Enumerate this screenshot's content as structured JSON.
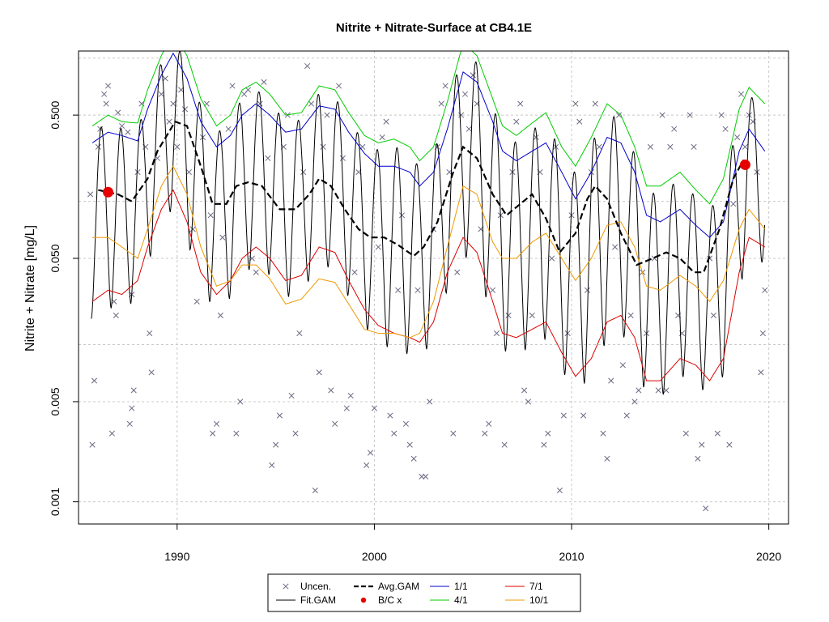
{
  "chart_data": {
    "type": "line",
    "title": "Nitrite + Nitrate-Surface at CB4.1E",
    "ylabel": "Nitrite + Nitrate [mg/L]",
    "xlabel": "",
    "y_scale": "log",
    "xlim": [
      1985.0,
      2021.0
    ],
    "ylim": [
      0.0007,
      1.4
    ],
    "x_ticks": [
      1990,
      2000,
      2010,
      2020
    ],
    "x_tick_labels": [
      "1990",
      "2000",
      "2010",
      "2020"
    ],
    "y_ticks": [
      0.001,
      0.005,
      0.05,
      0.5
    ],
    "y_tick_labels": [
      "0.001",
      "0.005",
      "0.050",
      "0.500"
    ],
    "grid": true,
    "legend_position": "bottom",
    "legend": [
      {
        "label": "Uncen.",
        "symbol": "x",
        "color": "#6B6B84"
      },
      {
        "label": "Fit.GAM",
        "symbol": "line",
        "color": "#000000"
      },
      {
        "label": "Avg.GAM",
        "symbol": "dashed",
        "color": "#000000"
      },
      {
        "label": "B/C x",
        "symbol": "dot",
        "color": "#e60000"
      },
      {
        "label": "1/1",
        "symbol": "line",
        "color": "#0000cc"
      },
      {
        "label": "4/1",
        "symbol": "line",
        "color": "#00cc00"
      },
      {
        "label": "7/1",
        "symbol": "line",
        "color": "#dd0000"
      },
      {
        "label": "10/1",
        "symbol": "line",
        "color": "#ee9900"
      }
    ],
    "series": [
      {
        "name": "Avg.GAM",
        "color": "#000000",
        "dashed": true,
        "x": [
          1986.0,
          1987.0,
          1987.7,
          1988.5,
          1989.0,
          1989.9,
          1990.5,
          1991.2,
          1991.8,
          1992.5,
          1993.0,
          1993.6,
          1994.3,
          1995.2,
          1996.0,
          1996.7,
          1997.2,
          1997.8,
          1998.5,
          1999.2,
          1999.8,
          2000.5,
          2001.2,
          2002.0,
          2002.5,
          2003.2,
          2004.0,
          2004.5,
          2005.2,
          2006.0,
          2006.7,
          2007.4,
          2008.0,
          2008.7,
          2009.4,
          2010.2,
          2010.8,
          2011.2,
          2011.8,
          2012.5,
          2013.3,
          2013.8,
          2014.8,
          2015.5,
          2016.2,
          2016.7,
          2017.5,
          2018.2,
          2018.7,
          2019.0
        ],
        "y": [
          0.15,
          0.14,
          0.125,
          0.18,
          0.28,
          0.45,
          0.42,
          0.22,
          0.12,
          0.12,
          0.16,
          0.17,
          0.16,
          0.11,
          0.11,
          0.14,
          0.18,
          0.16,
          0.11,
          0.08,
          0.07,
          0.07,
          0.062,
          0.052,
          0.06,
          0.09,
          0.2,
          0.3,
          0.25,
          0.14,
          0.1,
          0.12,
          0.14,
          0.095,
          0.055,
          0.075,
          0.13,
          0.16,
          0.13,
          0.075,
          0.045,
          0.048,
          0.055,
          0.05,
          0.04,
          0.04,
          0.08,
          0.18,
          0.24,
          0.22
        ]
      },
      {
        "name": "1/1",
        "color": "#0000cc",
        "x": [
          1985.7,
          1986.5,
          1987.2,
          1988.0,
          1988.5,
          1989.2,
          1989.8,
          1990.5,
          1991.2,
          1992.0,
          1992.7,
          1993.3,
          1994.0,
          1994.7,
          1995.5,
          1996.3,
          1997.2,
          1998.0,
          1998.7,
          1999.5,
          2000.2,
          2001.0,
          2001.8,
          2002.3,
          2003.0,
          2003.7,
          2004.5,
          2005.2,
          2006.0,
          2006.5,
          2007.2,
          2008.0,
          2008.7,
          2009.5,
          2010.2,
          2011.0,
          2011.8,
          2012.5,
          2013.2,
          2013.8,
          2014.5,
          2015.5,
          2016.3,
          2017.0,
          2017.7,
          2018.5,
          2019.0,
          2019.8
        ],
        "y": [
          0.32,
          0.38,
          0.36,
          0.33,
          0.55,
          0.95,
          1.35,
          0.9,
          0.45,
          0.3,
          0.36,
          0.5,
          0.6,
          0.5,
          0.38,
          0.4,
          0.58,
          0.55,
          0.38,
          0.27,
          0.22,
          0.22,
          0.2,
          0.16,
          0.2,
          0.4,
          1.0,
          0.85,
          0.45,
          0.28,
          0.24,
          0.28,
          0.32,
          0.2,
          0.13,
          0.2,
          0.35,
          0.32,
          0.2,
          0.1,
          0.09,
          0.11,
          0.085,
          0.07,
          0.09,
          0.28,
          0.4,
          0.28
        ]
      },
      {
        "name": "4/1",
        "color": "#00cc00",
        "x": [
          1985.7,
          1986.5,
          1987.2,
          1988.0,
          1988.5,
          1989.2,
          1989.8,
          1990.5,
          1991.2,
          1992.0,
          1992.7,
          1993.3,
          1994.0,
          1994.7,
          1995.5,
          1996.3,
          1997.2,
          1998.0,
          1998.7,
          1999.5,
          2000.2,
          2001.0,
          2001.8,
          2002.3,
          2003.0,
          2003.7,
          2004.5,
          2005.2,
          2006.0,
          2006.5,
          2007.2,
          2008.0,
          2008.7,
          2009.5,
          2010.2,
          2011.0,
          2011.8,
          2012.5,
          2013.2,
          2013.8,
          2014.5,
          2015.5,
          2016.3,
          2017.0,
          2017.7,
          2018.5,
          2019.0,
          2019.8
        ],
        "y": [
          0.42,
          0.5,
          0.45,
          0.44,
          0.75,
          1.3,
          1.9,
          1.3,
          0.65,
          0.42,
          0.5,
          0.75,
          0.85,
          0.7,
          0.5,
          0.52,
          0.8,
          0.75,
          0.52,
          0.36,
          0.32,
          0.34,
          0.3,
          0.24,
          0.3,
          0.62,
          1.6,
          1.3,
          0.65,
          0.42,
          0.36,
          0.44,
          0.52,
          0.3,
          0.22,
          0.35,
          0.6,
          0.5,
          0.3,
          0.16,
          0.16,
          0.2,
          0.15,
          0.12,
          0.18,
          0.55,
          0.78,
          0.6
        ]
      },
      {
        "name": "7/1",
        "color": "#dd0000",
        "x": [
          1985.7,
          1986.5,
          1987.2,
          1988.0,
          1988.5,
          1989.2,
          1989.8,
          1990.5,
          1991.2,
          1992.0,
          1992.7,
          1993.3,
          1994.0,
          1994.7,
          1995.5,
          1996.3,
          1997.2,
          1998.0,
          1998.7,
          1999.5,
          2000.2,
          2001.0,
          2001.8,
          2002.3,
          2003.0,
          2003.7,
          2004.5,
          2005.2,
          2006.0,
          2006.5,
          2007.2,
          2008.0,
          2008.7,
          2009.5,
          2010.2,
          2011.0,
          2011.8,
          2012.5,
          2013.2,
          2013.8,
          2014.5,
          2015.5,
          2016.3,
          2017.0,
          2017.7,
          2018.5,
          2019.0,
          2019.8
        ],
        "y": [
          0.025,
          0.03,
          0.028,
          0.035,
          0.06,
          0.11,
          0.15,
          0.09,
          0.04,
          0.028,
          0.035,
          0.05,
          0.06,
          0.05,
          0.035,
          0.038,
          0.06,
          0.055,
          0.035,
          0.022,
          0.017,
          0.015,
          0.014,
          0.013,
          0.018,
          0.04,
          0.07,
          0.055,
          0.025,
          0.015,
          0.014,
          0.016,
          0.018,
          0.011,
          0.0075,
          0.01,
          0.018,
          0.02,
          0.014,
          0.007,
          0.007,
          0.01,
          0.009,
          0.007,
          0.01,
          0.04,
          0.07,
          0.06
        ]
      },
      {
        "name": "10/1",
        "color": "#ee9900",
        "x": [
          1985.7,
          1986.5,
          1987.2,
          1988.0,
          1988.5,
          1989.2,
          1989.8,
          1990.5,
          1991.2,
          1992.0,
          1992.7,
          1993.3,
          1994.0,
          1994.7,
          1995.5,
          1996.3,
          1997.2,
          1998.0,
          1998.7,
          1999.5,
          2000.2,
          2001.0,
          2001.8,
          2002.3,
          2003.0,
          2003.7,
          2004.5,
          2005.2,
          2006.0,
          2006.5,
          2007.2,
          2008.0,
          2008.7,
          2009.5,
          2010.2,
          2011.0,
          2011.8,
          2012.5,
          2013.2,
          2013.8,
          2014.5,
          2015.5,
          2016.3,
          2017.0,
          2017.7,
          2018.5,
          2019.0,
          2019.8
        ],
        "y": [
          0.07,
          0.07,
          0.06,
          0.05,
          0.08,
          0.16,
          0.22,
          0.14,
          0.06,
          0.032,
          0.035,
          0.045,
          0.045,
          0.036,
          0.024,
          0.026,
          0.036,
          0.034,
          0.024,
          0.016,
          0.015,
          0.015,
          0.014,
          0.015,
          0.025,
          0.06,
          0.16,
          0.14,
          0.065,
          0.05,
          0.05,
          0.065,
          0.075,
          0.05,
          0.035,
          0.05,
          0.085,
          0.09,
          0.06,
          0.032,
          0.03,
          0.038,
          0.032,
          0.025,
          0.035,
          0.08,
          0.11,
          0.08
        ]
      }
    ],
    "fit_gam_note": "Fit.GAM oscillates annually between the 4/1 (winter high) and 7/1 (summer low) curves",
    "bc_points": [
      {
        "x": 1986.5,
        "y": 0.145
      },
      {
        "x": 2018.8,
        "y": 0.225
      }
    ],
    "uncen_points": [
      [
        1985.6,
        0.14
      ],
      [
        1985.7,
        0.0025
      ],
      [
        1985.8,
        0.007
      ],
      [
        1986.0,
        0.3
      ],
      [
        1986.1,
        0.4
      ],
      [
        1986.3,
        0.7
      ],
      [
        1986.4,
        0.6
      ],
      [
        1986.5,
        0.8
      ],
      [
        1986.7,
        0.003
      ],
      [
        1986.8,
        0.025
      ],
      [
        1986.9,
        0.02
      ],
      [
        1987.0,
        0.52
      ],
      [
        1987.2,
        0.42
      ],
      [
        1987.5,
        0.38
      ],
      [
        1987.6,
        0.0035
      ],
      [
        1987.7,
        0.0045
      ],
      [
        1987.7,
        0.028
      ],
      [
        1987.8,
        0.006
      ],
      [
        1988.0,
        0.2
      ],
      [
        1988.2,
        0.6
      ],
      [
        1988.4,
        0.3
      ],
      [
        1988.6,
        0.015
      ],
      [
        1988.7,
        0.008
      ],
      [
        1989.0,
        0.25
      ],
      [
        1989.2,
        0.7
      ],
      [
        1989.4,
        0.9
      ],
      [
        1989.6,
        0.45
      ],
      [
        1989.8,
        0.6
      ],
      [
        1990.0,
        0.3
      ],
      [
        1990.2,
        0.75
      ],
      [
        1990.4,
        0.55
      ],
      [
        1990.6,
        0.2
      ],
      [
        1990.8,
        0.08
      ],
      [
        1991.0,
        0.025
      ],
      [
        1991.3,
        0.35
      ],
      [
        1991.5,
        0.6
      ],
      [
        1991.7,
        0.1
      ],
      [
        1991.8,
        0.003
      ],
      [
        1992.0,
        0.0035
      ],
      [
        1992.2,
        0.02
      ],
      [
        1992.3,
        0.07
      ],
      [
        1992.6,
        0.4
      ],
      [
        1992.8,
        0.8
      ],
      [
        1993.0,
        0.003
      ],
      [
        1993.2,
        0.005
      ],
      [
        1993.4,
        0.7
      ],
      [
        1993.6,
        0.75
      ],
      [
        1993.8,
        0.05
      ],
      [
        1994.0,
        0.04
      ],
      [
        1994.2,
        0.6
      ],
      [
        1994.4,
        0.85
      ],
      [
        1994.6,
        0.25
      ],
      [
        1994.8,
        0.0018
      ],
      [
        1995.0,
        0.0025
      ],
      [
        1995.2,
        0.004
      ],
      [
        1995.4,
        0.3
      ],
      [
        1995.6,
        0.5
      ],
      [
        1995.8,
        0.0055
      ],
      [
        1996.0,
        0.003
      ],
      [
        1996.2,
        0.015
      ],
      [
        1996.4,
        0.2
      ],
      [
        1996.6,
        1.1
      ],
      [
        1996.8,
        0.6
      ],
      [
        1997.0,
        0.0012
      ],
      [
        1997.2,
        0.008
      ],
      [
        1997.4,
        0.3
      ],
      [
        1997.6,
        0.5
      ],
      [
        1997.8,
        0.006
      ],
      [
        1998.0,
        0.0035
      ],
      [
        1998.2,
        0.8
      ],
      [
        1998.4,
        0.25
      ],
      [
        1998.6,
        0.0045
      ],
      [
        1998.8,
        0.0055
      ],
      [
        1999.0,
        0.04
      ],
      [
        1999.2,
        0.2
      ],
      [
        1999.4,
        0.3
      ],
      [
        1999.6,
        0.0018
      ],
      [
        1999.8,
        0.0022
      ],
      [
        2000.0,
        0.0045
      ],
      [
        2000.2,
        0.06
      ],
      [
        2000.4,
        0.35
      ],
      [
        2000.6,
        0.45
      ],
      [
        2000.8,
        0.004
      ],
      [
        2001.0,
        0.003
      ],
      [
        2001.2,
        0.03
      ],
      [
        2001.4,
        0.1
      ],
      [
        2001.6,
        0.0035
      ],
      [
        2001.8,
        0.0025
      ],
      [
        2002.0,
        0.002
      ],
      [
        2002.2,
        0.03
      ],
      [
        2002.4,
        0.0015
      ],
      [
        2002.6,
        0.0015
      ],
      [
        2002.8,
        0.005
      ],
      [
        2003.0,
        0.08
      ],
      [
        2003.2,
        0.3
      ],
      [
        2003.4,
        0.6
      ],
      [
        2003.6,
        0.8
      ],
      [
        2003.8,
        0.2
      ],
      [
        2004.0,
        0.003
      ],
      [
        2004.2,
        0.04
      ],
      [
        2004.4,
        0.5
      ],
      [
        2004.6,
        0.7
      ],
      [
        2004.8,
        0.4
      ],
      [
        2005.0,
        0.95
      ],
      [
        2005.2,
        0.6
      ],
      [
        2005.4,
        0.08
      ],
      [
        2005.6,
        0.003
      ],
      [
        2005.8,
        0.0035
      ],
      [
        2006.0,
        0.03
      ],
      [
        2006.2,
        0.015
      ],
      [
        2006.4,
        0.1
      ],
      [
        2006.6,
        0.0025
      ],
      [
        2006.8,
        0.02
      ],
      [
        2007.0,
        0.2
      ],
      [
        2007.2,
        0.45
      ],
      [
        2007.4,
        0.6
      ],
      [
        2007.6,
        0.006
      ],
      [
        2007.8,
        0.005
      ],
      [
        2008.0,
        0.02
      ],
      [
        2008.2,
        0.35
      ],
      [
        2008.4,
        0.2
      ],
      [
        2008.6,
        0.0025
      ],
      [
        2008.8,
        0.003
      ],
      [
        2009.0,
        0.05
      ],
      [
        2009.2,
        0.3
      ],
      [
        2009.4,
        0.0012
      ],
      [
        2009.6,
        0.004
      ],
      [
        2009.8,
        0.015
      ],
      [
        2010.0,
        0.1
      ],
      [
        2010.2,
        0.6
      ],
      [
        2010.4,
        0.45
      ],
      [
        2010.6,
        0.004
      ],
      [
        2010.8,
        0.03
      ],
      [
        2011.0,
        0.2
      ],
      [
        2011.2,
        0.6
      ],
      [
        2011.4,
        0.3
      ],
      [
        2011.6,
        0.003
      ],
      [
        2011.8,
        0.002
      ],
      [
        2012.0,
        0.007
      ],
      [
        2012.2,
        0.06
      ],
      [
        2012.4,
        0.5
      ],
      [
        2012.6,
        0.009
      ],
      [
        2012.8,
        0.004
      ],
      [
        2013.0,
        0.02
      ],
      [
        2013.2,
        0.005
      ],
      [
        2013.4,
        0.006
      ],
      [
        2013.6,
        0.04
      ],
      [
        2013.8,
        0.015
      ],
      [
        2014.0,
        0.3
      ],
      [
        2014.2,
        0.05
      ],
      [
        2014.4,
        0.006
      ],
      [
        2014.6,
        0.5
      ],
      [
        2014.8,
        0.006
      ],
      [
        2015.0,
        0.3
      ],
      [
        2015.2,
        0.4
      ],
      [
        2015.4,
        0.02
      ],
      [
        2015.6,
        0.015
      ],
      [
        2015.8,
        0.003
      ],
      [
        2016.0,
        0.5
      ],
      [
        2016.2,
        0.3
      ],
      [
        2016.4,
        0.002
      ],
      [
        2016.6,
        0.0025
      ],
      [
        2016.8,
        0.0009
      ],
      [
        2017.0,
        0.05
      ],
      [
        2017.2,
        0.02
      ],
      [
        2017.4,
        0.003
      ],
      [
        2017.6,
        0.5
      ],
      [
        2017.8,
        0.4
      ],
      [
        2018.0,
        0.0025
      ],
      [
        2018.2,
        0.12
      ],
      [
        2018.4,
        0.35
      ],
      [
        2018.6,
        0.7
      ],
      [
        2018.8,
        0.3
      ],
      [
        2019.0,
        0.5
      ],
      [
        2019.2,
        0.45
      ],
      [
        2019.4,
        0.2
      ],
      [
        2019.6,
        0.008
      ],
      [
        2019.7,
        0.015
      ],
      [
        2019.8,
        0.03
      ]
    ]
  }
}
